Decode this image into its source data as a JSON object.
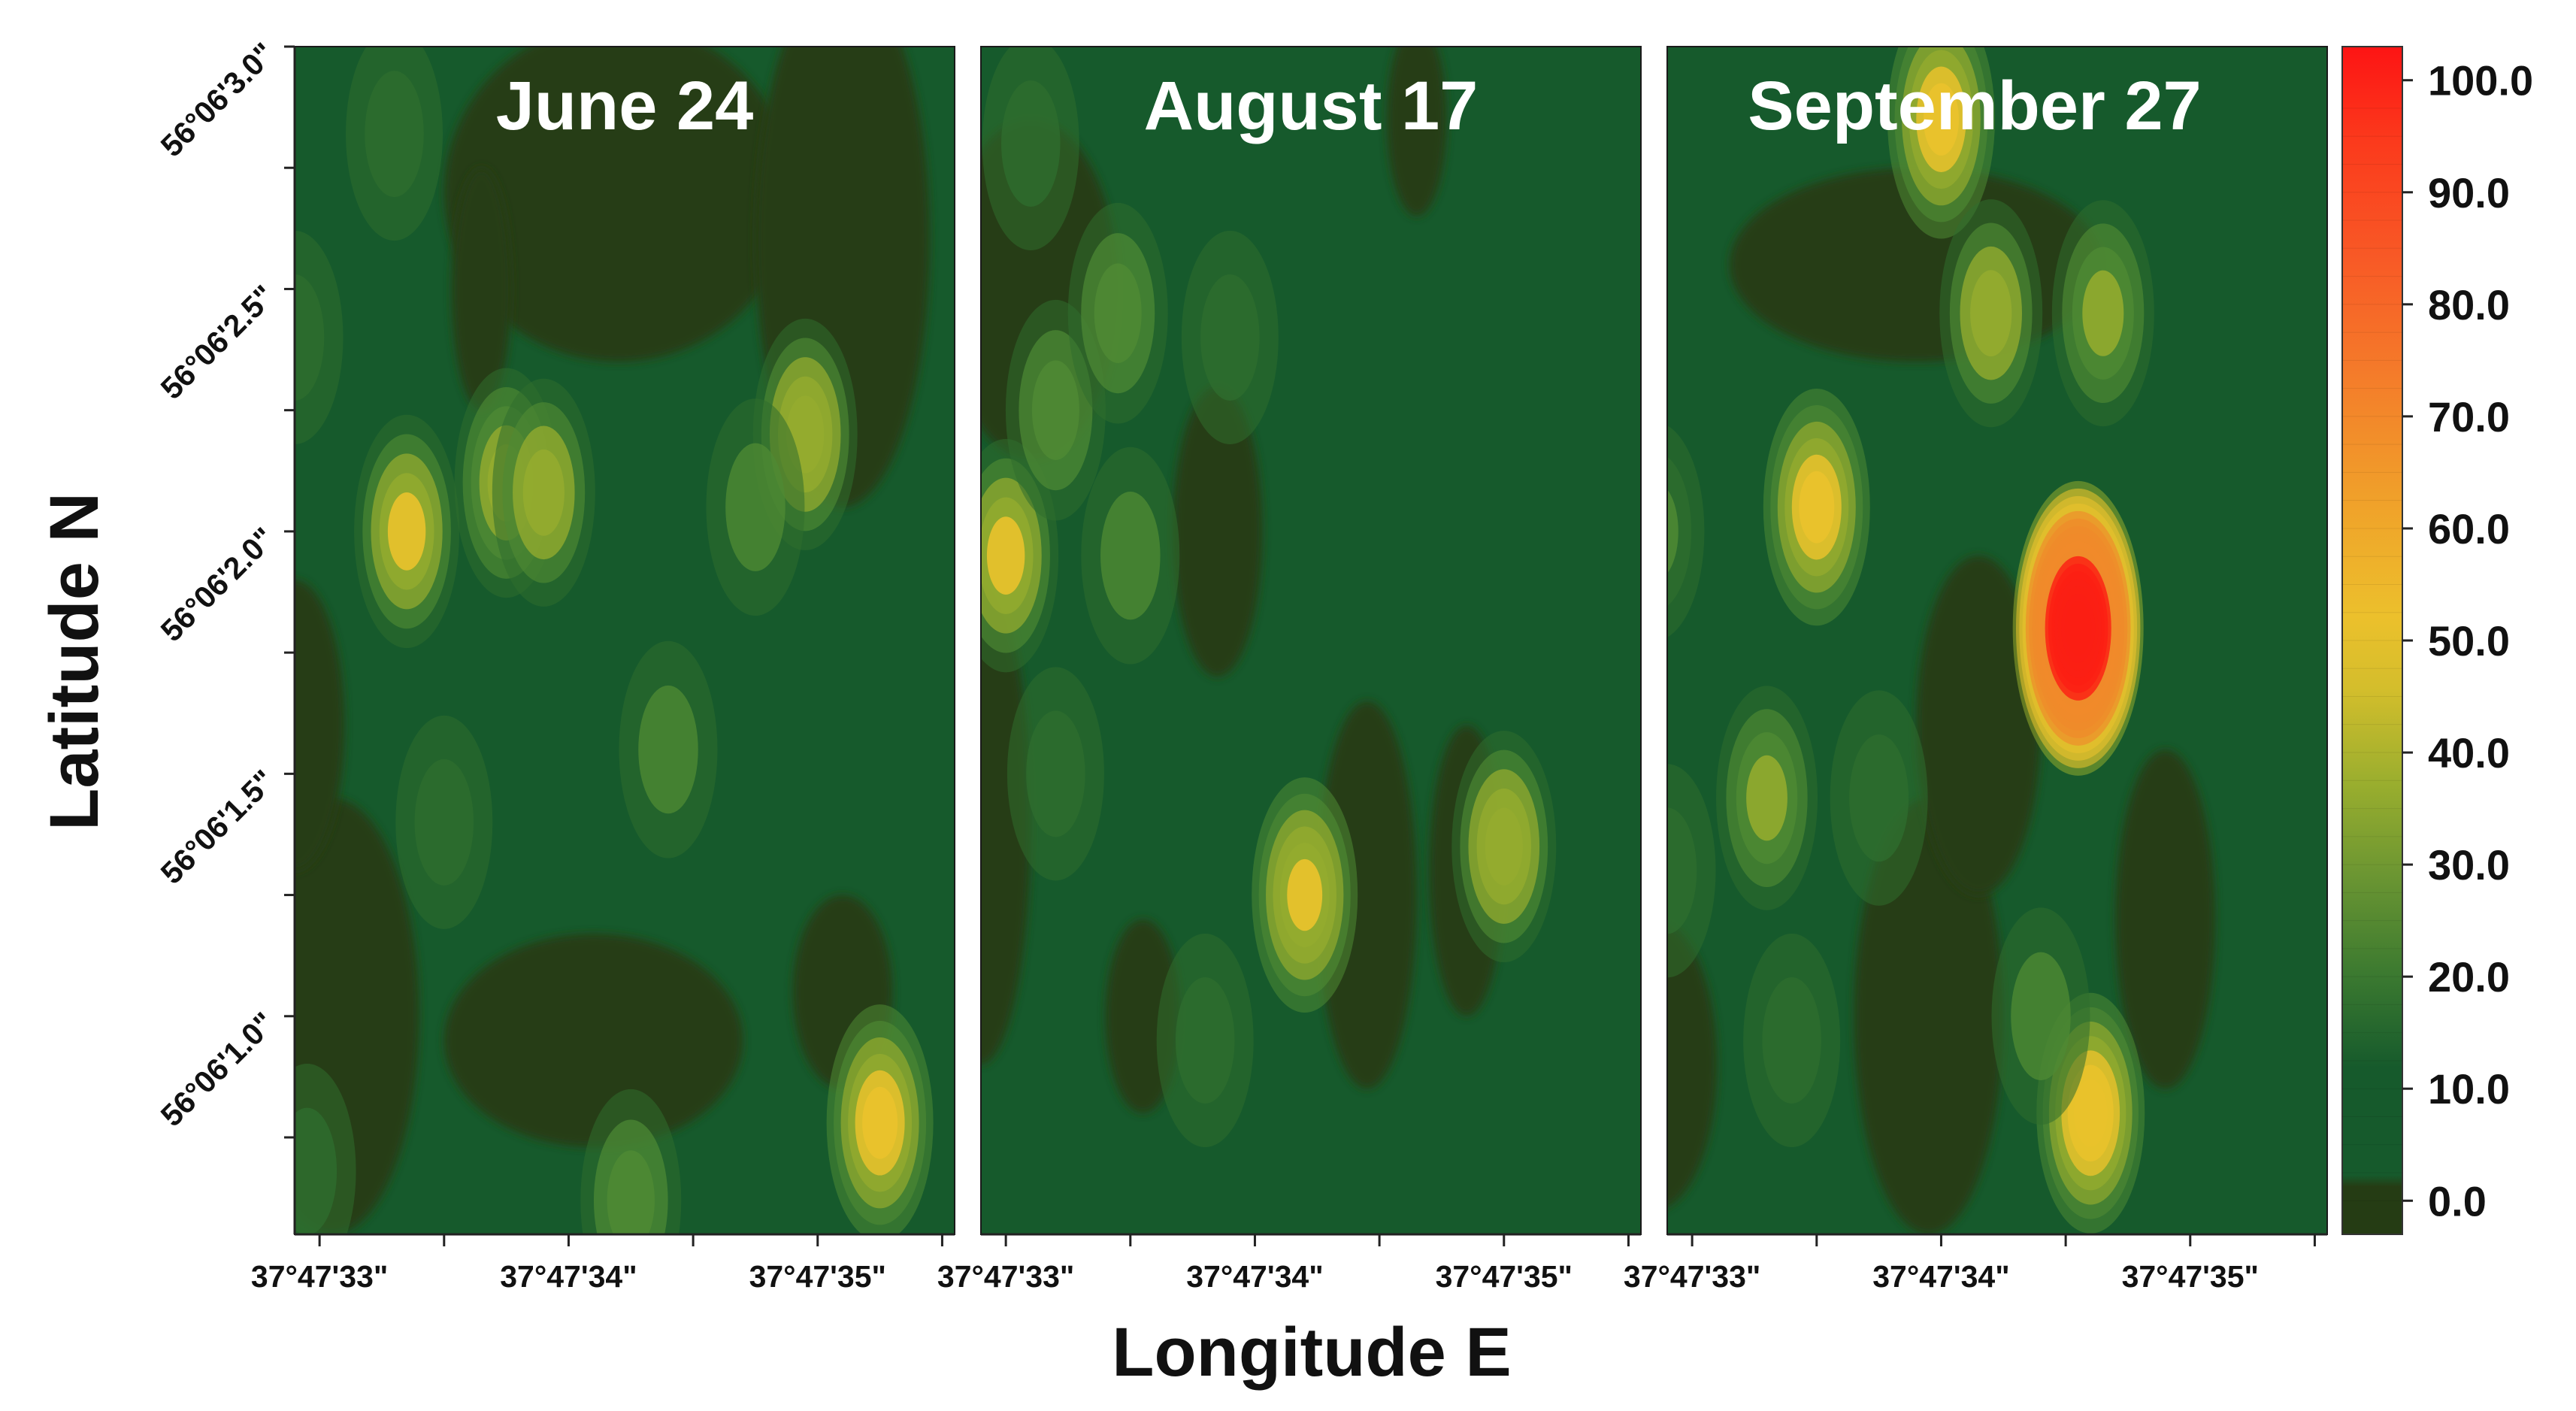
{
  "chart_data": {
    "type": "heatmap",
    "xlabel": "Longitude E",
    "ylabel": "Latitude N",
    "panels": [
      {
        "title": "June 24",
        "blobs": [
          {
            "lon": 33.35,
            "lat": 2.0,
            "value": 32
          },
          {
            "lon": 33.75,
            "lat": 2.1,
            "value": 28
          },
          {
            "lon": 33.9,
            "lat": 2.08,
            "value": 26
          },
          {
            "lon": 34.95,
            "lat": 2.2,
            "value": 30
          },
          {
            "lon": 34.75,
            "lat": 2.05,
            "value": 14
          },
          {
            "lon": 35.25,
            "lat": 0.78,
            "value": 36
          },
          {
            "lon": 34.25,
            "lat": 0.62,
            "value": 20
          },
          {
            "lon": 34.4,
            "lat": 1.55,
            "value": 14
          },
          {
            "lon": 33.3,
            "lat": 2.82,
            "value": 10
          },
          {
            "lon": 32.9,
            "lat": 2.4,
            "value": 10
          },
          {
            "lon": 32.95,
            "lat": 0.68,
            "value": 12
          },
          {
            "lon": 33.5,
            "lat": 1.4,
            "value": 10
          }
        ],
        "dark_zones": [
          {
            "lon": 34.2,
            "lat": 2.7,
            "rx": 0.7,
            "ry": 0.35
          },
          {
            "lon": 35.1,
            "lat": 2.6,
            "rx": 0.35,
            "ry": 0.55
          },
          {
            "lon": 33.05,
            "lat": 1.0,
            "rx": 0.35,
            "ry": 0.45
          },
          {
            "lon": 34.1,
            "lat": 0.95,
            "rx": 0.6,
            "ry": 0.22
          },
          {
            "lon": 35.1,
            "lat": 1.05,
            "rx": 0.2,
            "ry": 0.2
          },
          {
            "lon": 33.65,
            "lat": 2.5,
            "rx": 0.12,
            "ry": 0.25
          },
          {
            "lon": 32.9,
            "lat": 1.6,
            "rx": 0.2,
            "ry": 0.3
          }
        ]
      },
      {
        "title": "August 17",
        "blobs": [
          {
            "lon": 33.0,
            "lat": 1.95,
            "value": 32
          },
          {
            "lon": 33.2,
            "lat": 2.25,
            "value": 18
          },
          {
            "lon": 33.45,
            "lat": 2.45,
            "value": 18
          },
          {
            "lon": 34.2,
            "lat": 1.25,
            "value": 34
          },
          {
            "lon": 35.0,
            "lat": 1.35,
            "value": 30
          },
          {
            "lon": 33.5,
            "lat": 1.95,
            "value": 14
          },
          {
            "lon": 33.9,
            "lat": 2.4,
            "value": 10
          },
          {
            "lon": 33.8,
            "lat": 0.95,
            "value": 10
          },
          {
            "lon": 33.2,
            "lat": 1.5,
            "value": 10
          },
          {
            "lon": 33.1,
            "lat": 2.8,
            "value": 10
          }
        ],
        "dark_zones": [
          {
            "lon": 33.1,
            "lat": 2.5,
            "rx": 0.35,
            "ry": 0.35
          },
          {
            "lon": 33.85,
            "lat": 2.0,
            "rx": 0.18,
            "ry": 0.3
          },
          {
            "lon": 34.45,
            "lat": 1.25,
            "rx": 0.2,
            "ry": 0.4
          },
          {
            "lon": 34.85,
            "lat": 1.3,
            "rx": 0.15,
            "ry": 0.3
          },
          {
            "lon": 32.9,
            "lat": 1.4,
            "rx": 0.2,
            "ry": 0.5
          },
          {
            "lon": 33.55,
            "lat": 1.0,
            "rx": 0.15,
            "ry": 0.2
          },
          {
            "lon": 34.65,
            "lat": 2.85,
            "rx": 0.12,
            "ry": 0.2
          }
        ]
      },
      {
        "title": "September 27",
        "blobs": [
          {
            "lon": 33.5,
            "lat": 2.05,
            "value": 36
          },
          {
            "lon": 34.0,
            "lat": 2.85,
            "value": 38
          },
          {
            "lon": 34.2,
            "lat": 2.45,
            "value": 26
          },
          {
            "lon": 34.65,
            "lat": 2.45,
            "value": 24
          },
          {
            "lon": 34.55,
            "lat": 1.8,
            "value": 100
          },
          {
            "lon": 34.6,
            "lat": 0.8,
            "value": 40
          },
          {
            "lon": 33.3,
            "lat": 1.45,
            "value": 22
          },
          {
            "lon": 32.85,
            "lat": 2.0,
            "value": 16
          },
          {
            "lon": 34.4,
            "lat": 1.0,
            "value": 14
          },
          {
            "lon": 33.75,
            "lat": 1.45,
            "value": 12
          },
          {
            "lon": 32.9,
            "lat": 1.3,
            "value": 10
          },
          {
            "lon": 33.4,
            "lat": 0.95,
            "value": 10
          }
        ],
        "dark_zones": [
          {
            "lon": 33.9,
            "lat": 2.55,
            "rx": 0.75,
            "ry": 0.2
          },
          {
            "lon": 33.95,
            "lat": 1.0,
            "rx": 0.3,
            "ry": 0.45
          },
          {
            "lon": 34.15,
            "lat": 1.6,
            "rx": 0.25,
            "ry": 0.35
          },
          {
            "lon": 34.9,
            "lat": 1.2,
            "rx": 0.2,
            "ry": 0.35
          },
          {
            "lon": 32.85,
            "lat": 0.9,
            "rx": 0.25,
            "ry": 0.3
          }
        ]
      }
    ],
    "x_ticks": [
      {
        "label": "37°47'33\"",
        "value": 33
      },
      {
        "label": "37°47'34\"",
        "value": 34
      },
      {
        "label": "37°47'35\"",
        "value": 35
      }
    ],
    "y_ticks": [
      {
        "label": "56°06'1.0\"",
        "value": 1.0
      },
      {
        "label": "56°06'1.5\"",
        "value": 1.5
      },
      {
        "label": "56°06'2.0\"",
        "value": 2.0
      },
      {
        "label": "56°06'2.5\"",
        "value": 2.5
      },
      {
        "label": "56°06'3.0\"",
        "value": 3.0
      }
    ],
    "xlim": [
      32.9,
      35.55
    ],
    "ylim": [
      0.55,
      3.0
    ],
    "colorbar": {
      "ticks": [
        "0.0",
        "10.0",
        "20.0",
        "30.0",
        "40.0",
        "50.0",
        "60.0",
        "70.0",
        "80.0",
        "90.0",
        "100.0"
      ],
      "range": [
        -3,
        103
      ]
    },
    "colors": {
      "lowest": "#253c14",
      "base": "#165a2c",
      "mid_green": "#4f8a34",
      "olive": "#94ab2e",
      "yellow": "#e9c22c",
      "orange": "#f08a2a",
      "red": "#fb1f14"
    }
  }
}
